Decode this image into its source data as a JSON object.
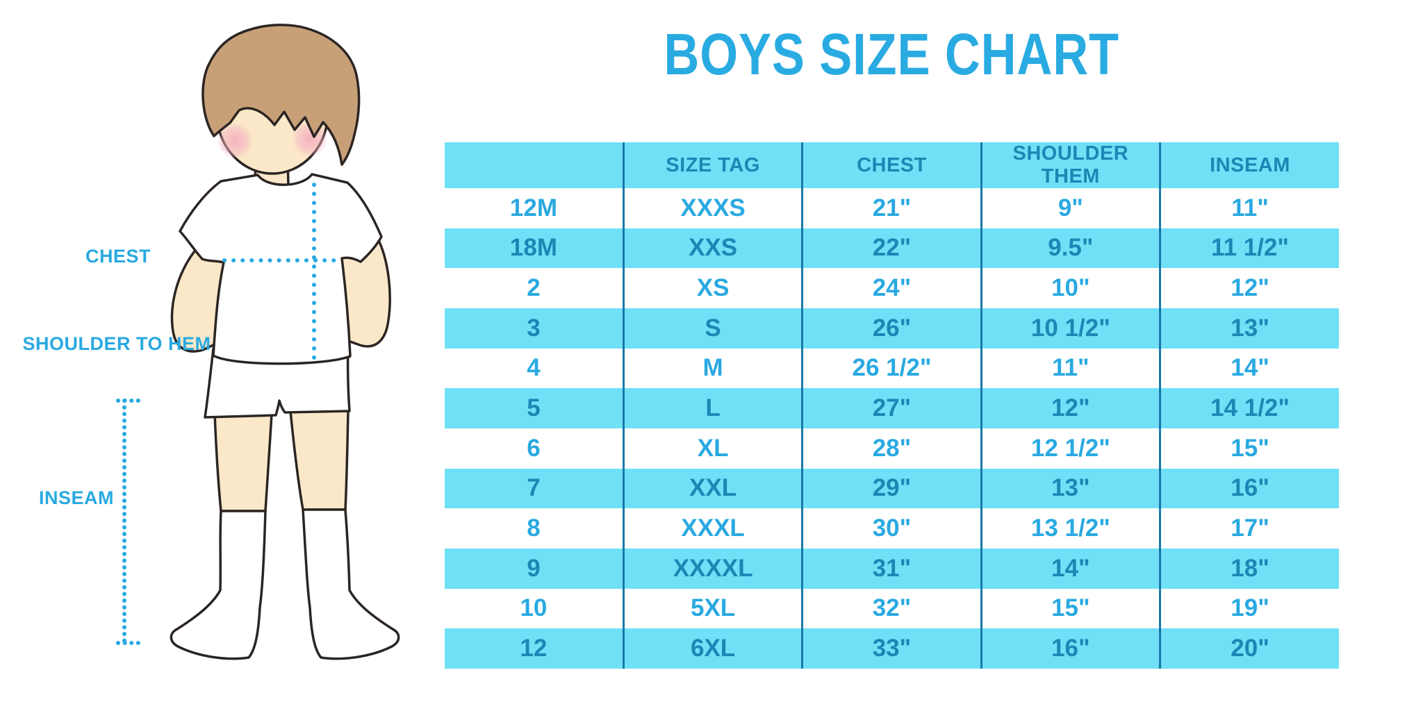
{
  "chart_data": {
    "type": "table",
    "title": "BOYS SIZE CHART",
    "columns": [
      "",
      "SIZE TAG",
      "CHEST",
      "SHOULDER THEM",
      "INSEAM"
    ],
    "rows": [
      [
        "12M",
        "XXXS",
        "21\"",
        "9\"",
        "11\""
      ],
      [
        "18M",
        "XXS",
        "22\"",
        "9.5\"",
        "11 1/2\""
      ],
      [
        "2",
        "XS",
        "24\"",
        "10\"",
        "12\""
      ],
      [
        "3",
        "S",
        "26\"",
        "10 1/2\"",
        "13\""
      ],
      [
        "4",
        "M",
        "26 1/2\"",
        "11\"",
        "14\""
      ],
      [
        "5",
        "L",
        "27\"",
        "12\"",
        "14 1/2\""
      ],
      [
        "6",
        "XL",
        "28\"",
        "12 1/2\"",
        "15\""
      ],
      [
        "7",
        "XXL",
        "29\"",
        "13\"",
        "16\""
      ],
      [
        "8",
        "XXXL",
        "30\"",
        "13 1/2\"",
        "17\""
      ],
      [
        "9",
        "XXXXL",
        "31\"",
        "14\"",
        "18\""
      ],
      [
        "10",
        "5XL",
        "32\"",
        "15\"",
        "19\""
      ],
      [
        "12",
        "6XL",
        "33\"",
        "16\"",
        "20\""
      ]
    ],
    "layout": {
      "row_striping": "alternating white and light blue, header filled light blue",
      "grid": "vertical column dividers only"
    }
  },
  "figure": {
    "labels": {
      "chest": "CHEST",
      "shoulder_to_hem": "SHOULDER TO HEM",
      "inseam": "INSEAM"
    }
  },
  "colors": {
    "accent": "#29abe2",
    "accent2": "#29a9e1",
    "rowfill": "#6fe0f6",
    "darktext": "#1c86b4",
    "divider": "#1878a8"
  }
}
